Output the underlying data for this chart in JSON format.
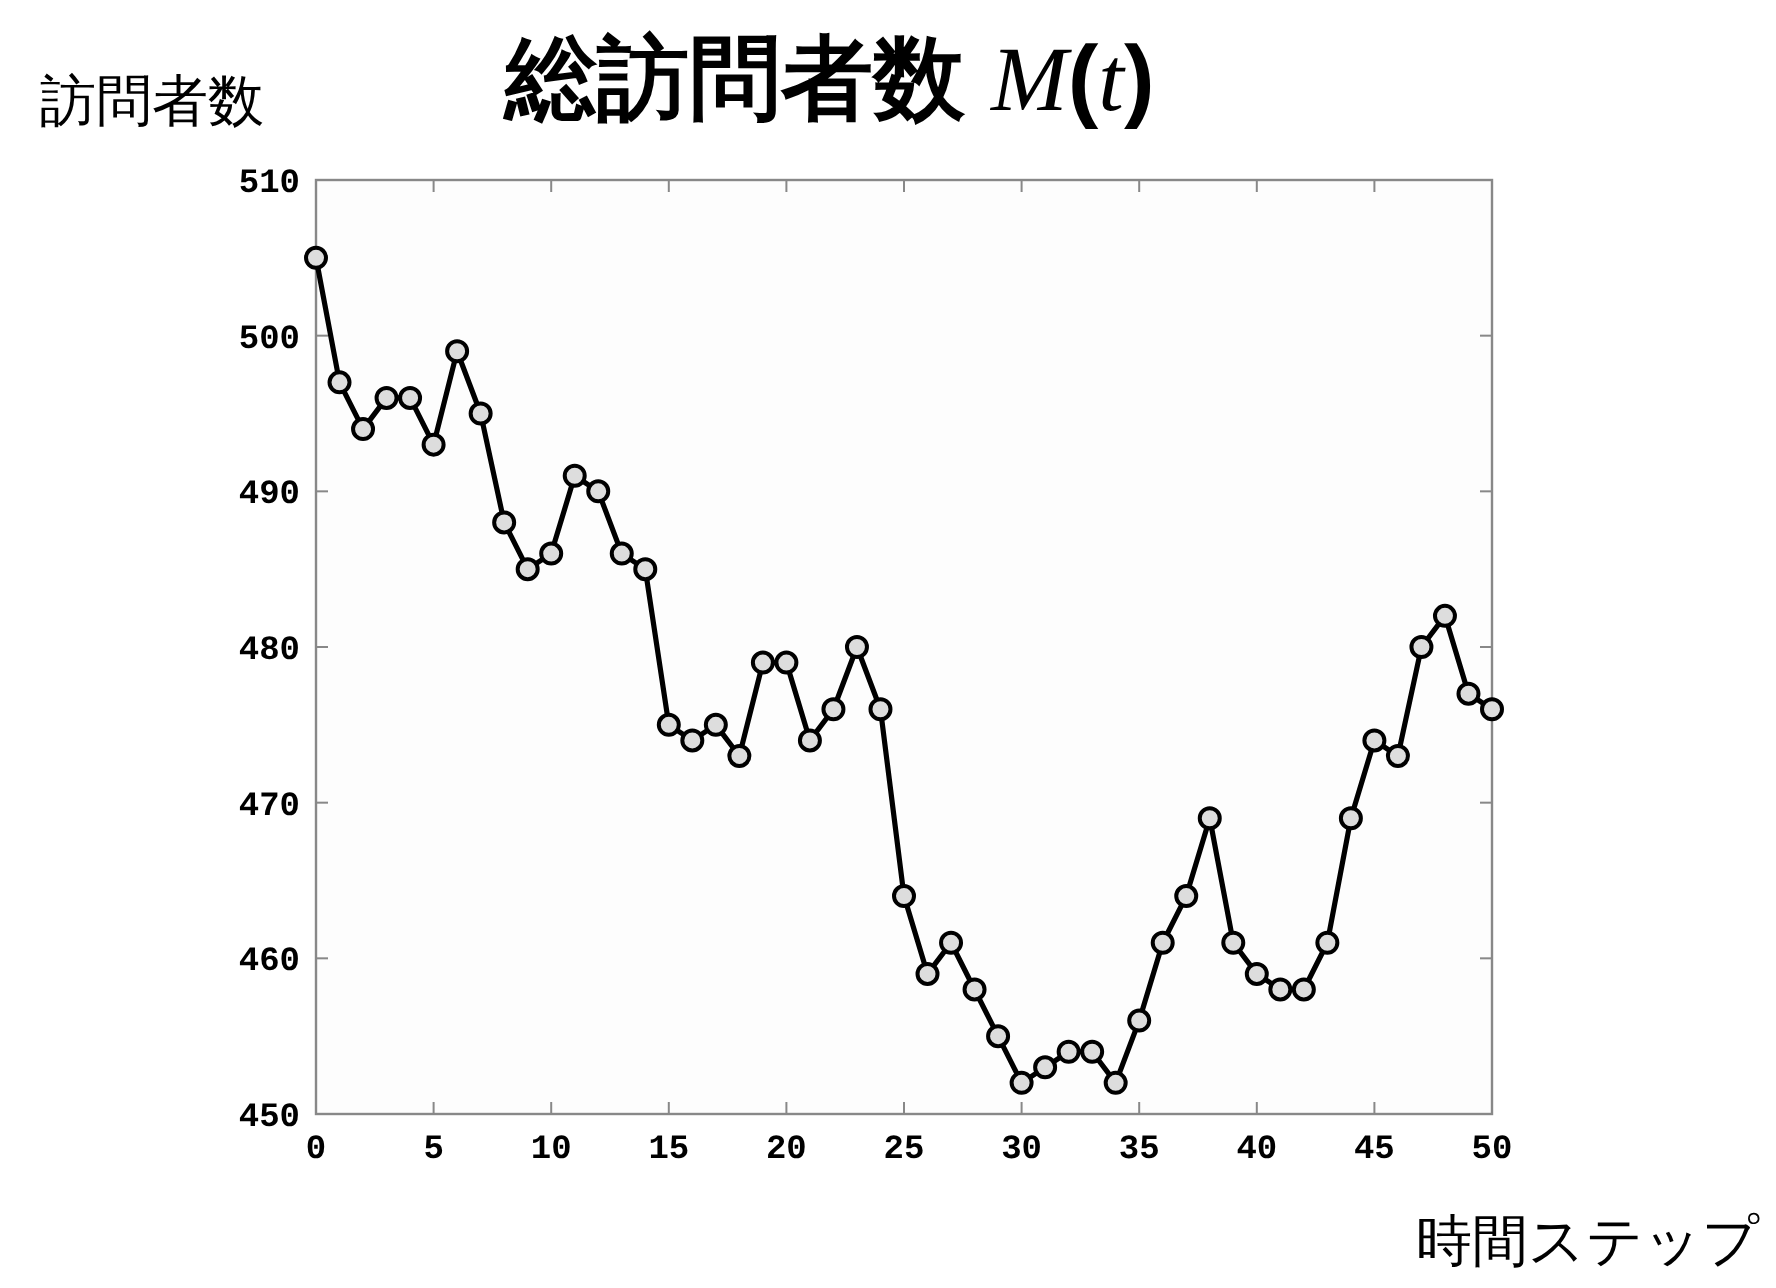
{
  "chart_data": {
    "type": "line",
    "title": "総訪問者数 *M*(*t*)",
    "ylabel": "訪問者数",
    "xlabel": "時間ステップ",
    "x": [
      0,
      1,
      2,
      3,
      4,
      5,
      6,
      7,
      8,
      9,
      10,
      11,
      12,
      13,
      14,
      15,
      16,
      17,
      18,
      19,
      20,
      21,
      22,
      23,
      24,
      25,
      26,
      27,
      28,
      29,
      30,
      31,
      32,
      33,
      34,
      35,
      36,
      37,
      38,
      39,
      40,
      41,
      42,
      43,
      44,
      45,
      46,
      47,
      48,
      49,
      50
    ],
    "series": [
      {
        "color": "#000000",
        "values": [
          505,
          497,
          494,
          496,
          496,
          493,
          499,
          495,
          488,
          485,
          486,
          491,
          490,
          486,
          485,
          475,
          474,
          475,
          473,
          479,
          479,
          474,
          476,
          480,
          476,
          464,
          459,
          461,
          458,
          455,
          452,
          453,
          454,
          454,
          452,
          456,
          461,
          464,
          469,
          461,
          459,
          458,
          458,
          461,
          469,
          474,
          473,
          480,
          482,
          477,
          476
        ]
      }
    ],
    "xlim": [
      0,
      50
    ],
    "ylim": [
      450,
      510
    ],
    "xticks": [
      0,
      5,
      10,
      15,
      20,
      25,
      30,
      35,
      40,
      45,
      50
    ],
    "yticks": [
      450,
      460,
      470,
      480,
      490,
      500,
      510
    ],
    "marker": "circle",
    "line_style": "solid",
    "grid": false
  }
}
